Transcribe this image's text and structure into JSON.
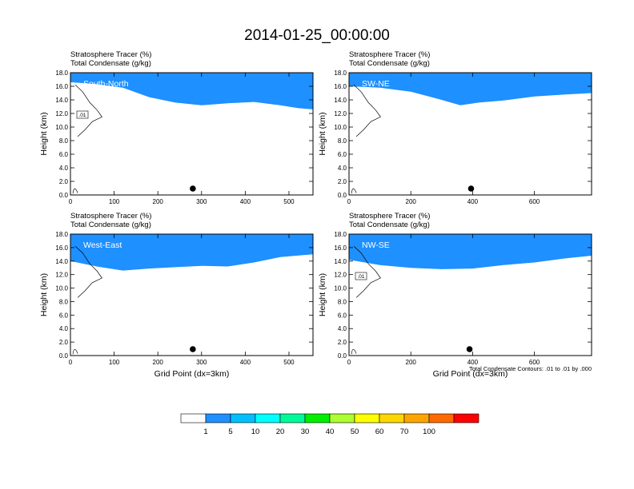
{
  "figure": {
    "title": "2014-01-25_00:00:00",
    "note": "Total Condensate Contours: .01 to .01 by .000"
  },
  "colorbar": {
    "labels": [
      "1",
      "5",
      "10",
      "20",
      "30",
      "40",
      "50",
      "60",
      "70",
      "100"
    ],
    "colors": [
      "#ffffff",
      "#1e90ff",
      "#00bfff",
      "#00ffff",
      "#00fa9a",
      "#00ee00",
      "#adff2f",
      "#ffff00",
      "#ffd700",
      "#ffa500",
      "#ff6a00",
      "#ff0000"
    ]
  },
  "chart_data": [
    {
      "type": "filled-contour",
      "panel_name": "South-North",
      "header_line1": "Stratosphere Tracer   (%)",
      "header_line2": "Total Condensate   (g/kg)",
      "xlabel": "",
      "ylabel": "Height (km)",
      "xlim": [
        0,
        555
      ],
      "ylim": [
        0,
        18
      ],
      "xticks": [
        0,
        100,
        200,
        300,
        400,
        500
      ],
      "yticks": [
        "0.0",
        "2.0",
        "4.0",
        "6.0",
        "8.0",
        "10.0",
        "12.0",
        "14.0",
        "16.0",
        "18.0"
      ],
      "marker_x": 280,
      "contour_label": ".01",
      "tropopause_km": [
        [
          0,
          16.6
        ],
        [
          60,
          16.3
        ],
        [
          120,
          15.8
        ],
        [
          180,
          14.4
        ],
        [
          240,
          13.6
        ],
        [
          300,
          13.2
        ],
        [
          360,
          13.5
        ],
        [
          420,
          13.7
        ],
        [
          480,
          13.2
        ],
        [
          520,
          12.8
        ],
        [
          555,
          12.6
        ]
      ]
    },
    {
      "type": "filled-contour",
      "panel_name": "SW-NE",
      "header_line1": "Stratosphere Tracer   (%)",
      "header_line2": "Total Condensate   (g/kg)",
      "xlabel": "",
      "ylabel": "Height (km)",
      "xlim": [
        0,
        785
      ],
      "ylim": [
        0,
        18
      ],
      "xticks": [
        0,
        200,
        400,
        600
      ],
      "yticks": [
        "0.0",
        "2.0",
        "4.0",
        "6.0",
        "8.0",
        "10.0",
        "12.0",
        "14.0",
        "16.0",
        "18.0"
      ],
      "marker_x": 395,
      "contour_label": "",
      "tropopause_km": [
        [
          0,
          16.0
        ],
        [
          100,
          15.8
        ],
        [
          200,
          15.2
        ],
        [
          300,
          14.0
        ],
        [
          360,
          13.2
        ],
        [
          420,
          13.6
        ],
        [
          500,
          13.9
        ],
        [
          600,
          14.5
        ],
        [
          700,
          14.8
        ],
        [
          785,
          15.0
        ]
      ]
    },
    {
      "type": "filled-contour",
      "panel_name": "West-East",
      "header_line1": "Stratosphere Tracer   (%)",
      "header_line2": "Total Condensate   (g/kg)",
      "xlabel": "Grid Point (dx=3km)",
      "ylabel": "Height (km)",
      "xlim": [
        0,
        555
      ],
      "ylim": [
        0,
        18
      ],
      "xticks": [
        0,
        100,
        200,
        300,
        400,
        500
      ],
      "yticks": [
        "0.0",
        "2.0",
        "4.0",
        "6.0",
        "8.0",
        "10.0",
        "12.0",
        "14.0",
        "16.0",
        "18.0"
      ],
      "marker_x": 280,
      "contour_label": "",
      "tropopause_km": [
        [
          0,
          14.0
        ],
        [
          60,
          13.2
        ],
        [
          120,
          12.6
        ],
        [
          180,
          12.9
        ],
        [
          240,
          13.1
        ],
        [
          300,
          13.3
        ],
        [
          360,
          13.2
        ],
        [
          420,
          13.8
        ],
        [
          480,
          14.6
        ],
        [
          555,
          15.0
        ]
      ]
    },
    {
      "type": "filled-contour",
      "panel_name": "NW-SE",
      "header_line1": "Stratosphere Tracer   (%)",
      "header_line2": "Total Condensate   (g/kg)",
      "xlabel": "Grid Point (dx=3km)",
      "ylabel": "Height (km)",
      "xlim": [
        0,
        785
      ],
      "ylim": [
        0,
        18
      ],
      "xticks": [
        0,
        200,
        400,
        600
      ],
      "yticks": [
        "0.0",
        "2.0",
        "4.0",
        "6.0",
        "8.0",
        "10.0",
        "12.0",
        "14.0",
        "16.0",
        "18.0"
      ],
      "marker_x": 390,
      "contour_label": ".01",
      "tropopause_km": [
        [
          0,
          14.2
        ],
        [
          100,
          13.4
        ],
        [
          200,
          13.0
        ],
        [
          300,
          12.8
        ],
        [
          400,
          12.9
        ],
        [
          500,
          13.4
        ],
        [
          600,
          13.8
        ],
        [
          700,
          14.4
        ],
        [
          785,
          14.8
        ]
      ]
    }
  ]
}
